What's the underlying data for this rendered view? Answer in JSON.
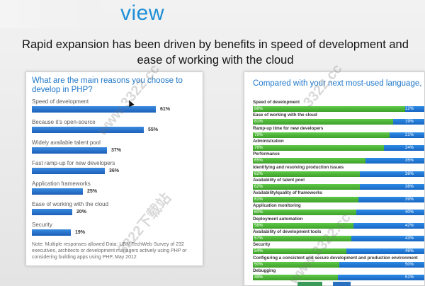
{
  "slide": {
    "title": "view",
    "subtitle": "Rapid expansion has been driven by benefits in speed of development and ease of working with the cloud"
  },
  "left_panel": {
    "title": "What are the main reasons you choose to develop in PHP?",
    "items": [
      {
        "label": "Speed of development",
        "value": 61,
        "value_label": "61%"
      },
      {
        "label": "Because it’s open-source",
        "value": 55,
        "value_label": "55%"
      },
      {
        "label": "Widely available talent pool",
        "value": 37,
        "value_label": "37%"
      },
      {
        "label": "Fast ramp-up for new developers",
        "value": 36,
        "value_label": "36%"
      },
      {
        "label": "Application frameworks",
        "value": 25,
        "value_label": "25%"
      },
      {
        "label": "Ease of working with the cloud",
        "value": 20,
        "value_label": "20%"
      },
      {
        "label": "Security",
        "value": 19,
        "value_label": "19%"
      }
    ],
    "note": "Note: Multiple responses allowed Data: UBM TechWeb Survey of 232 executives, architects or development managers actively using PHP or considering building apps using PHP, May 2012"
  },
  "right_panel": {
    "title": "Compared with your next most-used language, is PHP better or worse at each of the following?",
    "items": [
      {
        "label": "Speed of development",
        "better": 88,
        "worse": 12,
        "better_label": "88%",
        "worse_label": "12%"
      },
      {
        "label": "Ease of working with the cloud",
        "better": 81,
        "worse": 19,
        "better_label": "81%",
        "worse_label": "19%"
      },
      {
        "label": "Ramp-up time for new developers",
        "better": 79,
        "worse": 21,
        "better_label": "79%",
        "worse_label": "21%"
      },
      {
        "label": "Administration",
        "better": 76,
        "worse": 24,
        "better_label": "76%",
        "worse_label": "24%"
      },
      {
        "label": "Performance",
        "better": 65,
        "worse": 35,
        "better_label": "65%",
        "worse_label": "35%"
      },
      {
        "label": "Identifying and resolving production issues",
        "better": 62,
        "worse": 38,
        "better_label": "62%",
        "worse_label": "38%"
      },
      {
        "label": "Availability of talent pool",
        "better": 62,
        "worse": 38,
        "better_label": "62%",
        "worse_label": "38%"
      },
      {
        "label": "Availability/quality of frameworks",
        "better": 61,
        "worse": 39,
        "better_label": "61%",
        "worse_label": "39%"
      },
      {
        "label": "Application monitoring",
        "better": 60,
        "worse": 40,
        "better_label": "60%",
        "worse_label": "40%"
      },
      {
        "label": "Deployment automation",
        "better": 58,
        "worse": 42,
        "better_label": "58%",
        "worse_label": "42%"
      },
      {
        "label": "Availability of development tools",
        "better": 57,
        "worse": 43,
        "better_label": "57%",
        "worse_label": "43%"
      },
      {
        "label": "Security",
        "better": 54,
        "worse": 46,
        "better_label": "54%",
        "worse_label": "46%"
      },
      {
        "label": "Configuring a consistent and secure development and production environment",
        "better": 50,
        "worse": 50,
        "better_label": "50%",
        "worse_label": "50%"
      },
      {
        "label": "Debugging",
        "better": 49,
        "worse": 51,
        "better_label": "49%",
        "worse_label": "51%"
      }
    ]
  },
  "watermarks": [
    "www.3322.cc",
    "3322下载站",
    "3322.cc"
  ],
  "colors": {
    "title_blue": "#1e8fd6",
    "bar_blue": "#1c5fb8",
    "better_green": "#3fa02b",
    "worse_blue": "#1866c2"
  }
}
